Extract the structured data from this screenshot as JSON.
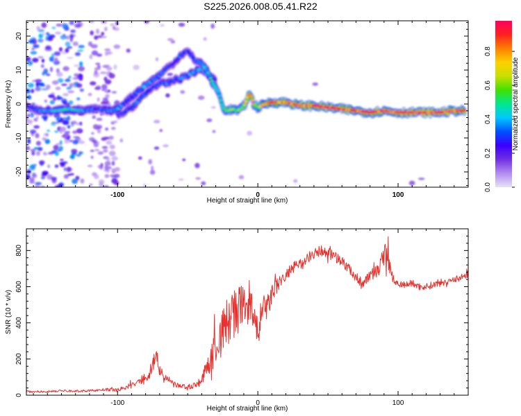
{
  "figure_title": "S225.2026.008.05.41.R22",
  "colorbar": {
    "label": "Normalized spectral amplitude",
    "ticks": [
      "0.0",
      "0.2",
      "0.4",
      "0.6",
      "0.8"
    ],
    "tick_values": [
      0.0,
      0.2,
      0.4,
      0.6,
      0.8
    ],
    "range": [
      0,
      0.98
    ],
    "colors": [
      "#e8e0f8",
      "#b48cf0",
      "#7030e0",
      "#3c00ff",
      "#0050ff",
      "#00c8ff",
      "#00e890",
      "#40e000",
      "#c8e000",
      "#ffd000",
      "#ff8000",
      "#ff2020",
      "#ff0060"
    ]
  },
  "chart_data": [
    {
      "type": "heatmap",
      "title": "",
      "xlabel": "Height of straight line (km)",
      "ylabel": "Frequency (Hz)",
      "xlim": [
        -165,
        150
      ],
      "ylim": [
        -24.5,
        24.5
      ],
      "xticks": [
        -100,
        0,
        100
      ],
      "xtick_labels": [
        "-100",
        "0",
        "100"
      ],
      "yticks": [
        -20,
        -10,
        0,
        10,
        20
      ],
      "ytick_labels": [
        "-20",
        "-10",
        "0",
        "10",
        "20"
      ],
      "ridge": {
        "x": [
          -165,
          -155,
          -145,
          -135,
          -125,
          -115,
          -105,
          -100,
          -95,
          -90,
          -85,
          -80,
          -75,
          -70,
          -65,
          -60,
          -55,
          -50,
          -45,
          -40,
          -35,
          -32,
          -28,
          -25,
          -22,
          -18,
          -15,
          -12,
          -9,
          -7,
          -5,
          -3,
          0,
          5,
          10,
          20,
          30,
          40,
          50,
          60,
          70,
          80,
          90,
          100,
          110,
          120,
          130,
          140,
          148
        ],
        "y": [
          -0.5,
          -2,
          -2,
          -1.5,
          -2,
          -1.5,
          -2,
          -1.5,
          0.5,
          2,
          4,
          5.5,
          7,
          8.5,
          10.5,
          12,
          14.5,
          15.5,
          13,
          12,
          9,
          6,
          3.5,
          -1,
          -2,
          -1.5,
          -2,
          -1.5,
          0,
          2.5,
          2.5,
          0,
          -1,
          0,
          0.5,
          0.5,
          -0.5,
          -0.5,
          -1,
          -1.5,
          -2,
          -2.5,
          -2,
          -2.5,
          -2.5,
          -2.5,
          -2.5,
          -2,
          -2
        ],
        "amplitude": [
          0.25,
          0.35,
          0.4,
          0.45,
          0.4,
          0.3,
          0.35,
          0.4,
          0.3,
          0.3,
          0.35,
          0.4,
          0.35,
          0.35,
          0.3,
          0.25,
          0.35,
          0.3,
          0.3,
          0.4,
          0.45,
          0.5,
          0.5,
          0.55,
          0.6,
          0.65,
          0.6,
          0.6,
          0.7,
          0.85,
          0.9,
          0.75,
          0.6,
          0.8,
          0.85,
          0.9,
          0.9,
          0.9,
          0.92,
          0.9,
          0.9,
          0.92,
          0.92,
          0.93,
          0.94,
          0.95,
          0.94,
          0.9,
          0.88
        ]
      },
      "branch": {
        "x": [
          -100,
          -95,
          -90,
          -85,
          -80,
          -75,
          -70,
          -65,
          -60,
          -55,
          -50,
          -45,
          -40,
          -35,
          -30
        ],
        "y": [
          -3,
          -2.5,
          -1,
          1,
          3,
          5,
          6,
          6,
          7,
          7.5,
          8.5,
          9.5,
          10.5,
          8,
          7
        ],
        "amplitude": [
          0.3,
          0.3,
          0.3,
          0.35,
          0.35,
          0.3,
          0.3,
          0.35,
          0.3,
          0.35,
          0.35,
          0.4,
          0.4,
          0.35,
          0.3
        ]
      }
    },
    {
      "type": "line",
      "title": "",
      "xlabel": "Height of straight line (km)",
      "ylabel": "SNR (10 * v/v)",
      "xlim": [
        -165,
        150
      ],
      "ylim": [
        0,
        920
      ],
      "xticks": [
        -100,
        0,
        100
      ],
      "xtick_labels": [
        "-100",
        "0",
        "100"
      ],
      "yticks": [
        0,
        200,
        400,
        600,
        800
      ],
      "ytick_labels": [
        "0",
        "200",
        "400",
        "600",
        "800"
      ],
      "series": [
        {
          "color": "#e8302c",
          "x": [
            -165,
            -150,
            -140,
            -130,
            -120,
            -110,
            -100,
            -95,
            -90,
            -85,
            -80,
            -75,
            -73,
            -70,
            -67,
            -63,
            -60,
            -55,
            -50,
            -45,
            -40,
            -37,
            -34,
            -30,
            -27,
            -24,
            -20,
            -17,
            -15,
            -12,
            -10,
            -7,
            -5,
            -3,
            0,
            3,
            5,
            8,
            10,
            15,
            20,
            25,
            30,
            35,
            40,
            45,
            50,
            55,
            60,
            65,
            70,
            75,
            80,
            85,
            88,
            90,
            92,
            94,
            96,
            98,
            100,
            105,
            110,
            115,
            120,
            125,
            130,
            135,
            140,
            145,
            150
          ],
          "y": [
            20,
            20,
            25,
            22,
            25,
            30,
            30,
            40,
            55,
            70,
            100,
            160,
            210,
            150,
            100,
            80,
            60,
            50,
            45,
            55,
            80,
            140,
            200,
            260,
            320,
            370,
            420,
            460,
            440,
            490,
            470,
            520,
            500,
            380,
            360,
            450,
            480,
            500,
            560,
            620,
            660,
            700,
            720,
            760,
            780,
            800,
            790,
            770,
            740,
            700,
            650,
            620,
            660,
            690,
            720,
            770,
            800,
            720,
            660,
            620,
            620,
            610,
            620,
            600,
            600,
            610,
            620,
            630,
            640,
            650,
            670
          ],
          "noise": [
            6,
            6,
            6,
            6,
            6,
            8,
            10,
            12,
            18,
            25,
            35,
            45,
            60,
            45,
            30,
            20,
            15,
            14,
            14,
            18,
            30,
            50,
            80,
            110,
            130,
            140,
            150,
            150,
            150,
            140,
            140,
            130,
            120,
            120,
            100,
            90,
            80,
            70,
            60,
            50,
            40,
            35,
            30,
            30,
            30,
            30,
            30,
            30,
            28,
            28,
            28,
            28,
            30,
            40,
            60,
            80,
            90,
            70,
            40,
            25,
            20,
            20,
            20,
            20,
            20,
            20,
            20,
            20,
            20,
            20,
            20
          ]
        }
      ]
    }
  ]
}
